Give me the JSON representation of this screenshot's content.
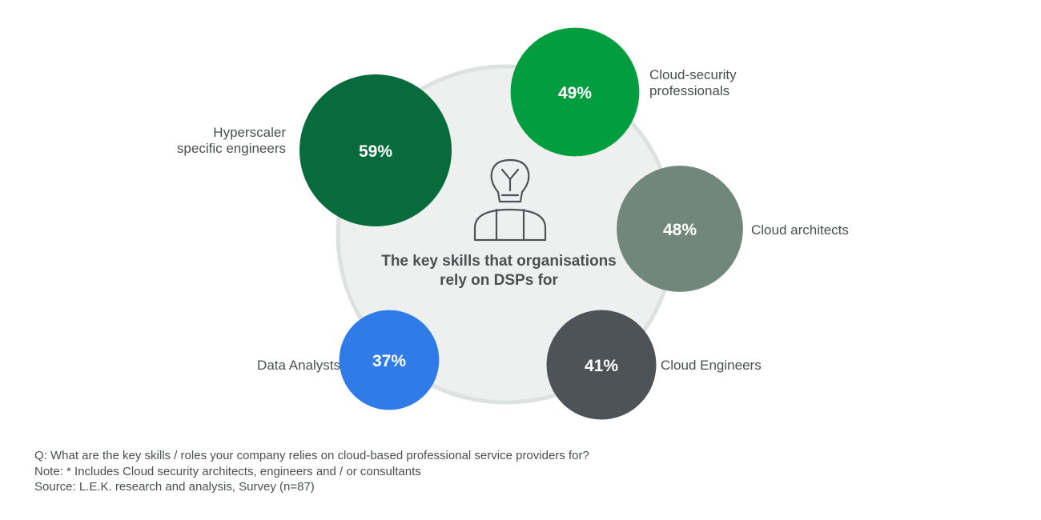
{
  "chart_data": {
    "type": "bubble",
    "title_lines": [
      "The key skills that organisations",
      "rely on DSPs for"
    ],
    "center_icon": "person-lightbulb-icon",
    "series": [
      {
        "name": "Hyperscaler specific engineers",
        "label_lines": [
          "Hyperscaler",
          "specific engineers"
        ],
        "value": 59,
        "value_label": "59%",
        "color": "#086b3c"
      },
      {
        "name": "Cloud-security professionals",
        "label_lines": [
          "Cloud-security",
          "professionals"
        ],
        "value": 49,
        "value_label": "49%",
        "color": "#029d3f"
      },
      {
        "name": "Cloud architects",
        "label_lines": [
          "Cloud architects"
        ],
        "value": 48,
        "value_label": "48%",
        "color": "#72877c"
      },
      {
        "name": "Cloud Engineers",
        "label_lines": [
          "Cloud Engineers"
        ],
        "value": 41,
        "value_label": "41%",
        "color": "#4e5357"
      },
      {
        "name": "Data Analysts",
        "label_lines": [
          "Data Analysts"
        ],
        "value": 37,
        "value_label": "37%",
        "color": "#2f7ce8"
      }
    ],
    "colors": {
      "center_fill": "#eef0ef",
      "center_stroke": "#dde2e0",
      "label_text": "#4a4f4f",
      "title_text": "#4a4f4f",
      "value_text": "#ffffff"
    }
  },
  "footnotes": {
    "question": "Q: What are the key skills / roles your company relies on cloud-based professional service providers for?",
    "note": "Note: * Includes Cloud security architects, engineers and / or consultants",
    "source": "Source: L.E.K. research and analysis, Survey (n=87)"
  }
}
